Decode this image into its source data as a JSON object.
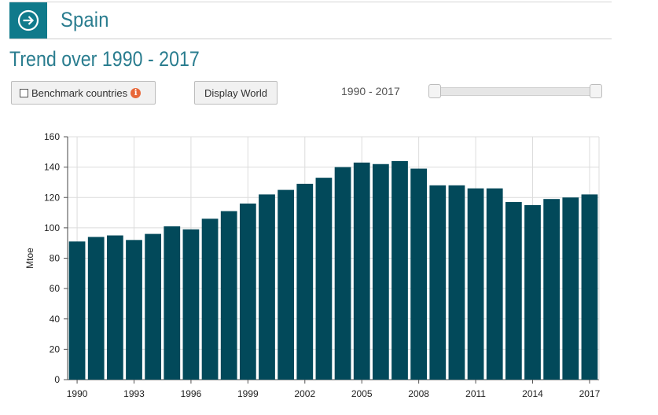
{
  "header": {
    "title": "Spain",
    "icon": "arrow-right-circle-icon",
    "accent_color": "#107a8b"
  },
  "subtitle": "Trend over 1990 - 2017",
  "controls": {
    "benchmark_label": "Benchmark countries",
    "benchmark_checked": false,
    "info_glyph": "i",
    "display_world_label": "Display World",
    "range_label": "1990 - 2017",
    "range_min": 1990,
    "range_max": 2017
  },
  "chart_data": {
    "type": "bar",
    "title": "",
    "xlabel": "",
    "ylabel": "Mtoe",
    "ylim": [
      0,
      160
    ],
    "yticks": [
      0,
      20,
      40,
      60,
      80,
      100,
      120,
      140,
      160
    ],
    "xtick_labels": [
      "1990",
      "1993",
      "1996",
      "1999",
      "2002",
      "2005",
      "2008",
      "2011",
      "2014",
      "2017"
    ],
    "categories": [
      "1990",
      "1991",
      "1992",
      "1993",
      "1994",
      "1995",
      "1996",
      "1997",
      "1998",
      "1999",
      "2000",
      "2001",
      "2002",
      "2003",
      "2004",
      "2005",
      "2006",
      "2007",
      "2008",
      "2009",
      "2010",
      "2011",
      "2012",
      "2013",
      "2014",
      "2015",
      "2016",
      "2017"
    ],
    "values": [
      91,
      94,
      95,
      92,
      96,
      101,
      99,
      106,
      111,
      116,
      122,
      125,
      129,
      133,
      140,
      143,
      142,
      144,
      139,
      128,
      128,
      126,
      126,
      117,
      115,
      119,
      120,
      122
    ],
    "bar_color": "#02495a",
    "grid": true
  }
}
